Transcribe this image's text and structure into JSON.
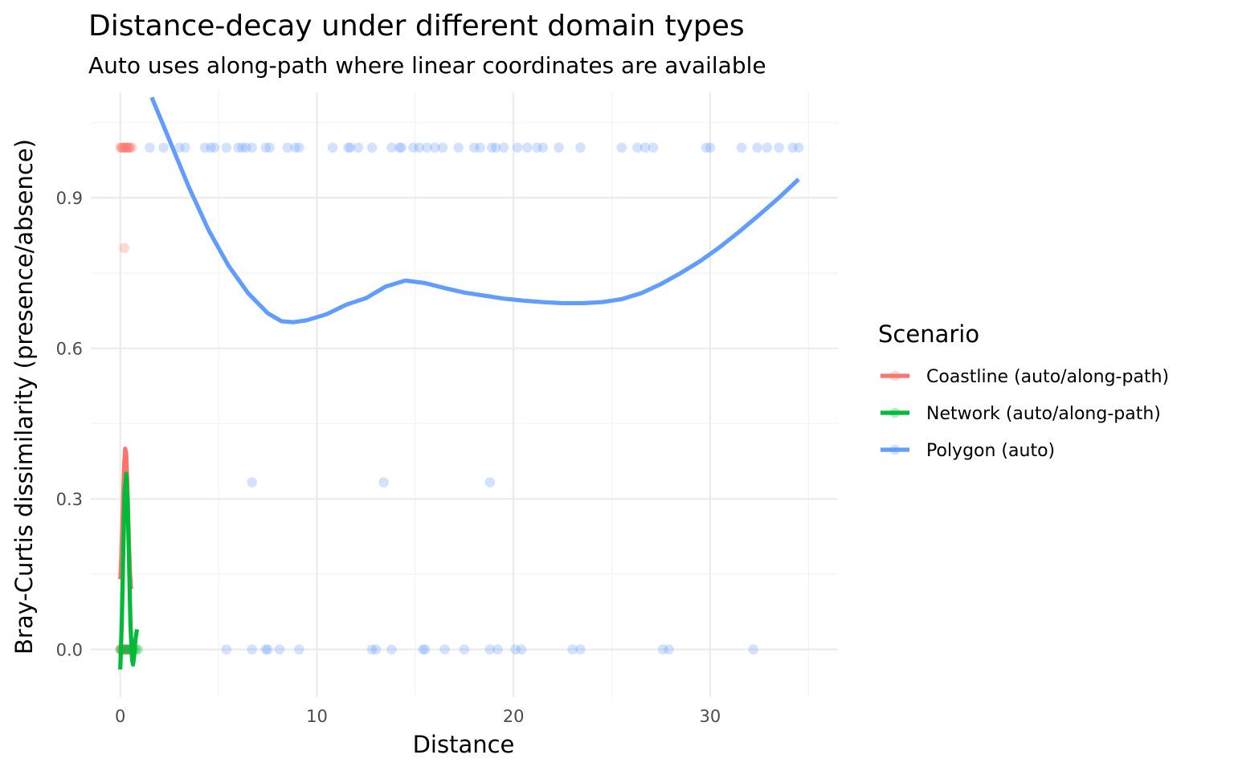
{
  "chart_data": {
    "type": "scatter",
    "title": "Distance-decay under different domain types",
    "subtitle": "Auto uses along-path where linear coordinates are available",
    "xlabel": "Distance",
    "ylabel": "Bray-Curtis dissimilarity (presence/absence)",
    "xlim": [
      -1.5,
      36.5
    ],
    "ylim": [
      -0.095,
      1.11
    ],
    "x_ticks": [
      0,
      10,
      20,
      30
    ],
    "x_tick_labels": [
      "0",
      "10",
      "20",
      "30"
    ],
    "y_ticks": [
      0.0,
      0.3,
      0.6,
      0.9
    ],
    "y_tick_labels": [
      "0.0",
      "0.3",
      "0.6",
      "0.9"
    ],
    "grid": true,
    "legend": {
      "title": "Scenario",
      "position": "right"
    },
    "series": [
      {
        "name": "Coastline (auto/along-path)",
        "color": "#F8766D",
        "points": [
          [
            0.0,
            1.0
          ],
          [
            0.05,
            1.0
          ],
          [
            0.1,
            1.0
          ],
          [
            0.15,
            1.0
          ],
          [
            0.2,
            1.0
          ],
          [
            0.25,
            1.0
          ],
          [
            0.3,
            1.0
          ],
          [
            0.35,
            1.0
          ],
          [
            0.4,
            1.0
          ],
          [
            0.45,
            1.0
          ],
          [
            0.5,
            1.0
          ],
          [
            0.6,
            1.0
          ],
          [
            0.2,
            0.8
          ],
          [
            0.0,
            0.0
          ],
          [
            0.05,
            0.0
          ],
          [
            0.1,
            0.0
          ],
          [
            0.15,
            0.0
          ],
          [
            0.2,
            0.0
          ],
          [
            0.25,
            0.0
          ],
          [
            0.3,
            0.0
          ],
          [
            0.35,
            0.0
          ],
          [
            0.4,
            0.0
          ],
          [
            0.45,
            0.0
          ],
          [
            0.5,
            0.0
          ],
          [
            0.55,
            0.0
          ],
          [
            0.6,
            0.0
          ]
        ],
        "smooth": [
          [
            0.0,
            0.14
          ],
          [
            0.05,
            0.18
          ],
          [
            0.1,
            0.24
          ],
          [
            0.15,
            0.31
          ],
          [
            0.2,
            0.37
          ],
          [
            0.25,
            0.4
          ],
          [
            0.3,
            0.39
          ],
          [
            0.35,
            0.34
          ],
          [
            0.4,
            0.27
          ],
          [
            0.45,
            0.2
          ],
          [
            0.5,
            0.15
          ],
          [
            0.55,
            0.12
          ]
        ]
      },
      {
        "name": "Network (auto/along-path)",
        "color": "#00BA38",
        "points": [
          [
            0.0,
            0.0
          ],
          [
            0.1,
            0.0
          ],
          [
            0.2,
            0.0
          ],
          [
            0.3,
            0.0
          ],
          [
            0.4,
            0.0
          ],
          [
            0.5,
            0.0
          ],
          [
            0.6,
            0.0
          ],
          [
            0.7,
            0.0
          ],
          [
            0.8,
            0.0
          ],
          [
            0.9,
            0.0
          ]
        ],
        "smooth": [
          [
            0.0,
            -0.04
          ],
          [
            0.08,
            0.06
          ],
          [
            0.15,
            0.19
          ],
          [
            0.22,
            0.31
          ],
          [
            0.3,
            0.35
          ],
          [
            0.37,
            0.3
          ],
          [
            0.45,
            0.17
          ],
          [
            0.52,
            0.05
          ],
          [
            0.6,
            -0.02
          ],
          [
            0.65,
            -0.03
          ],
          [
            0.7,
            -0.015
          ],
          [
            0.77,
            0.02
          ],
          [
            0.85,
            0.04
          ]
        ]
      },
      {
        "name": "Polygon (auto)",
        "color": "#619CFF",
        "points": [
          [
            1.5,
            1.0
          ],
          [
            2.2,
            1.0
          ],
          [
            3.0,
            1.0
          ],
          [
            3.3,
            1.0
          ],
          [
            4.3,
            1.0
          ],
          [
            4.6,
            1.0
          ],
          [
            4.8,
            1.0
          ],
          [
            5.4,
            1.0
          ],
          [
            6.0,
            1.0
          ],
          [
            6.2,
            1.0
          ],
          [
            6.4,
            1.0
          ],
          [
            6.7,
            1.0
          ],
          [
            7.4,
            1.0
          ],
          [
            7.6,
            1.0
          ],
          [
            8.5,
            1.0
          ],
          [
            8.9,
            1.0
          ],
          [
            9.1,
            1.0
          ],
          [
            10.8,
            1.0
          ],
          [
            11.6,
            1.0
          ],
          [
            11.7,
            1.0
          ],
          [
            12.1,
            1.0
          ],
          [
            12.8,
            1.0
          ],
          [
            13.8,
            1.0
          ],
          [
            14.2,
            1.0
          ],
          [
            14.3,
            1.0
          ],
          [
            14.9,
            1.0
          ],
          [
            15.2,
            1.0
          ],
          [
            15.6,
            1.0
          ],
          [
            16.0,
            1.0
          ],
          [
            16.4,
            1.0
          ],
          [
            17.2,
            1.0
          ],
          [
            18.0,
            1.0
          ],
          [
            18.3,
            1.0
          ],
          [
            18.9,
            1.0
          ],
          [
            19.1,
            1.0
          ],
          [
            19.5,
            1.0
          ],
          [
            20.2,
            1.0
          ],
          [
            20.7,
            1.0
          ],
          [
            21.2,
            1.0
          ],
          [
            21.5,
            1.0
          ],
          [
            22.3,
            1.0
          ],
          [
            23.4,
            1.0
          ],
          [
            25.5,
            1.0
          ],
          [
            26.3,
            1.0
          ],
          [
            26.7,
            1.0
          ],
          [
            27.1,
            1.0
          ],
          [
            29.8,
            1.0
          ],
          [
            30.0,
            1.0
          ],
          [
            31.6,
            1.0
          ],
          [
            32.4,
            1.0
          ],
          [
            32.9,
            1.0
          ],
          [
            33.5,
            1.0
          ],
          [
            34.2,
            1.0
          ],
          [
            34.5,
            1.0
          ],
          [
            6.7,
            0.333
          ],
          [
            13.4,
            0.333
          ],
          [
            18.8,
            0.333
          ],
          [
            5.4,
            0.0
          ],
          [
            6.7,
            0.0
          ],
          [
            7.4,
            0.0
          ],
          [
            7.5,
            0.0
          ],
          [
            8.1,
            0.0
          ],
          [
            9.1,
            0.0
          ],
          [
            12.8,
            0.0
          ],
          [
            13.0,
            0.0
          ],
          [
            13.8,
            0.0
          ],
          [
            15.4,
            0.0
          ],
          [
            15.5,
            0.0
          ],
          [
            16.5,
            0.0
          ],
          [
            17.5,
            0.0
          ],
          [
            18.8,
            0.0
          ],
          [
            19.2,
            0.0
          ],
          [
            20.1,
            0.0
          ],
          [
            20.4,
            0.0
          ],
          [
            23.0,
            0.0
          ],
          [
            23.4,
            0.0
          ],
          [
            27.6,
            0.0
          ],
          [
            27.9,
            0.0
          ],
          [
            32.2,
            0.0
          ]
        ],
        "smooth": [
          [
            1.6,
            1.1
          ],
          [
            2.5,
            1.015
          ],
          [
            3.5,
            0.92
          ],
          [
            4.5,
            0.835
          ],
          [
            5.5,
            0.765
          ],
          [
            6.5,
            0.71
          ],
          [
            7.5,
            0.67
          ],
          [
            8.2,
            0.654
          ],
          [
            8.8,
            0.652
          ],
          [
            9.5,
            0.656
          ],
          [
            10.5,
            0.668
          ],
          [
            11.5,
            0.687
          ],
          [
            12.5,
            0.7
          ],
          [
            13.5,
            0.723
          ],
          [
            14.5,
            0.735
          ],
          [
            15.5,
            0.73
          ],
          [
            16.5,
            0.72
          ],
          [
            17.5,
            0.711
          ],
          [
            18.5,
            0.705
          ],
          [
            19.5,
            0.699
          ],
          [
            20.5,
            0.695
          ],
          [
            21.5,
            0.692
          ],
          [
            22.5,
            0.69
          ],
          [
            23.5,
            0.69
          ],
          [
            24.5,
            0.692
          ],
          [
            25.5,
            0.698
          ],
          [
            26.5,
            0.71
          ],
          [
            27.5,
            0.728
          ],
          [
            28.5,
            0.75
          ],
          [
            29.5,
            0.774
          ],
          [
            30.5,
            0.802
          ],
          [
            31.5,
            0.833
          ],
          [
            32.5,
            0.866
          ],
          [
            33.5,
            0.9
          ],
          [
            34.5,
            0.937
          ]
        ]
      }
    ]
  }
}
